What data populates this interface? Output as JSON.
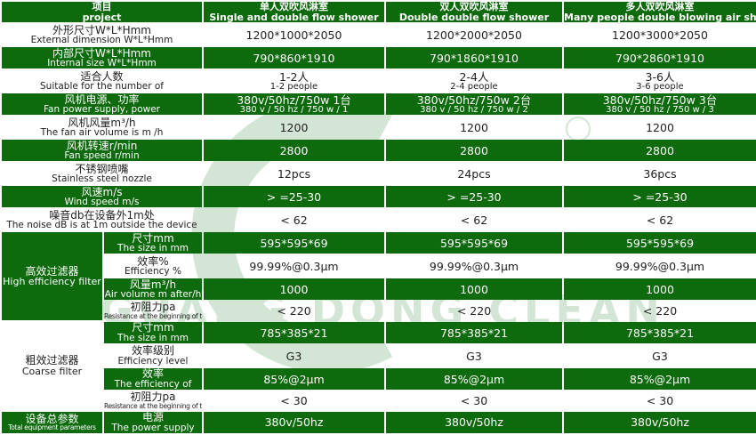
{
  "header": {
    "project": {
      "cn": "项目",
      "en": "project"
    },
    "columns": [
      {
        "cn": "单人双吹风淋室",
        "en": "Single and double flow shower"
      },
      {
        "cn": "双人双吹风淋室",
        "en": "Double double flow shower"
      },
      {
        "cn": "多人双吹风淋室",
        "en": "Many people double blowing air shower"
      }
    ]
  },
  "rows": [
    {
      "cn": "外形尺寸W*L*Hmm",
      "en": "External dimension W*L*Hmm",
      "green": false,
      "values": [
        {
          "main": "1200*1000*2050"
        },
        {
          "main": "1200*2000*2050"
        },
        {
          "main": "1200*3000*2050"
        }
      ]
    },
    {
      "cn": "内部尺寸W*L*Hmm",
      "en": "Internal size W*L*Hmm",
      "green": true,
      "values": [
        {
          "main": "790*860*1910"
        },
        {
          "main": "790*1860*1910"
        },
        {
          "main": "790*2860*1910"
        }
      ]
    },
    {
      "cn": "适合人数",
      "en": "Suitable for the number of",
      "green": false,
      "values": [
        {
          "main": "1-2人",
          "sub": "1-2 people"
        },
        {
          "main": "2-4人",
          "sub": "2-4 people"
        },
        {
          "main": "3-6人",
          "sub": "3-6 people"
        }
      ]
    },
    {
      "cn": "风机电源、功率",
      "en": "Fan power supply, power",
      "green": true,
      "values": [
        {
          "main": "380v/50hz/750w 1台",
          "sub": "380 v / 50 hz / 750 w / 1"
        },
        {
          "main": "380v/50hz/750w 2台",
          "sub": "380 v / 50 hz / 750 w / 2"
        },
        {
          "main": "380v/50hz/750w 3台",
          "sub": "380 v / 50 hz / 750 w / 3"
        }
      ]
    },
    {
      "cn": "风机风量m³/h",
      "en": "The fan air volume is m /h",
      "green": false,
      "values": [
        {
          "main": "1200"
        },
        {
          "main": "1200"
        },
        {
          "main": "1200"
        }
      ]
    },
    {
      "cn": "风机转速r/min",
      "en": "Fan speed r/min",
      "green": true,
      "values": [
        {
          "main": "2800"
        },
        {
          "main": "2800"
        },
        {
          "main": "2800"
        }
      ]
    },
    {
      "cn": "不锈钢喷嘴",
      "en": "Stainless steel nozzle",
      "green": false,
      "values": [
        {
          "main": "12pcs"
        },
        {
          "main": "24pcs"
        },
        {
          "main": "36pcs"
        }
      ]
    },
    {
      "cn": "风速m/s",
      "en": "Wind speed m/s",
      "green": true,
      "values": [
        {
          "main": "> =25-30"
        },
        {
          "main": "> =25-30"
        },
        {
          "main": "> =25-30"
        }
      ]
    },
    {
      "cn": "噪音db在设备外1m处",
      "en": "The noise dB is at 1m outside the device",
      "green": false,
      "values": [
        {
          "main": "< 62"
        },
        {
          "main": "< 62"
        },
        {
          "main": "< 62"
        }
      ]
    }
  ],
  "groups": [
    {
      "cn": "高效过滤器",
      "en": "High efficiency filter",
      "green": true,
      "rows": [
        {
          "cn": "尺寸mm",
          "en": "The size in mm",
          "green": true,
          "values": [
            {
              "main": "595*595*69"
            },
            {
              "main": "595*595*69"
            },
            {
              "main": "595*595*69"
            }
          ]
        },
        {
          "cn": "效率%",
          "en": "Efficiency %",
          "green": false,
          "values": [
            {
              "main": "99.99%@0.3μm"
            },
            {
              "main": "99.99%@0.3μm"
            },
            {
              "main": "99.99%@0.3μm"
            }
          ]
        },
        {
          "cn": "风量m³/h",
          "en": "Air volume m after/h",
          "green": true,
          "values": [
            {
              "main": "1000"
            },
            {
              "main": "1000"
            },
            {
              "main": "1000"
            }
          ]
        },
        {
          "cn": "初阻力pa",
          "en": "Resistance at the beginning of the pa",
          "tiny": true,
          "green": false,
          "values": [
            {
              "main": "< 220"
            },
            {
              "main": "< 220"
            },
            {
              "main": "< 220"
            }
          ]
        }
      ]
    },
    {
      "cn": "粗效过滤器",
      "en": "Coarse filter",
      "green": false,
      "rows": [
        {
          "cn": "尺寸mm",
          "en": "The size in mm",
          "green": true,
          "values": [
            {
              "main": "785*385*21"
            },
            {
              "main": "785*385*21"
            },
            {
              "main": "785*385*21"
            }
          ]
        },
        {
          "cn": "效率级别",
          "en": "Efficiency level",
          "green": false,
          "values": [
            {
              "main": "G3"
            },
            {
              "main": "G3"
            },
            {
              "main": "G3"
            }
          ]
        },
        {
          "cn": "效率",
          "en": "The efficiency of",
          "green": true,
          "values": [
            {
              "main": "85%@2μm"
            },
            {
              "main": "85%@2μm"
            },
            {
              "main": "85%@2μm"
            }
          ]
        },
        {
          "cn": "初阻力pa",
          "en": "Resistance at the beginning of the pa",
          "tiny": true,
          "green": false,
          "values": [
            {
              "main": "< 30"
            },
            {
              "main": "< 30"
            },
            {
              "main": "< 30"
            }
          ]
        }
      ]
    },
    {
      "cn": "设备总参数",
      "en": "Total equipment parameters",
      "green": true,
      "tinyLabel": true,
      "rows": [
        {
          "cn": "电源",
          "en": "The power supply",
          "green": true,
          "values": [
            {
              "main": "380v/50hz"
            },
            {
              "main": "380v/50hz"
            },
            {
              "main": "380v/50hz"
            }
          ]
        }
      ]
    }
  ],
  "watermark": {
    "logo": "GDC",
    "text": "GUANG DONG CLEAN",
    "mark": "®",
    "color": "#cfe3d2"
  }
}
